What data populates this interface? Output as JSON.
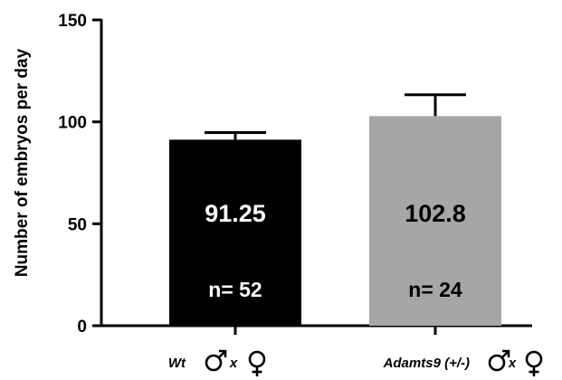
{
  "chart_data": {
    "type": "bar",
    "ylabel": "Number of embryos per day",
    "ylim": [
      0,
      150
    ],
    "yticks": [
      0,
      50,
      100,
      150
    ],
    "yticks_text": [
      "0",
      "50",
      "100",
      "150"
    ],
    "categories": [
      "Wt",
      "Adamts9 (+/-)"
    ],
    "cross_symbol": "x",
    "values": [
      91.25,
      102.8
    ],
    "errors": [
      3.5,
      10.5
    ],
    "value_labels": [
      "91.25",
      "102.8"
    ],
    "n_labels": [
      "n= 52",
      "n= 24"
    ],
    "bar_colors": [
      "#000000",
      "#a6a6a6"
    ],
    "value_label_colors": [
      "#ffffff",
      "#000000"
    ],
    "n_label_colors": [
      "#ffffff",
      "#000000"
    ]
  }
}
